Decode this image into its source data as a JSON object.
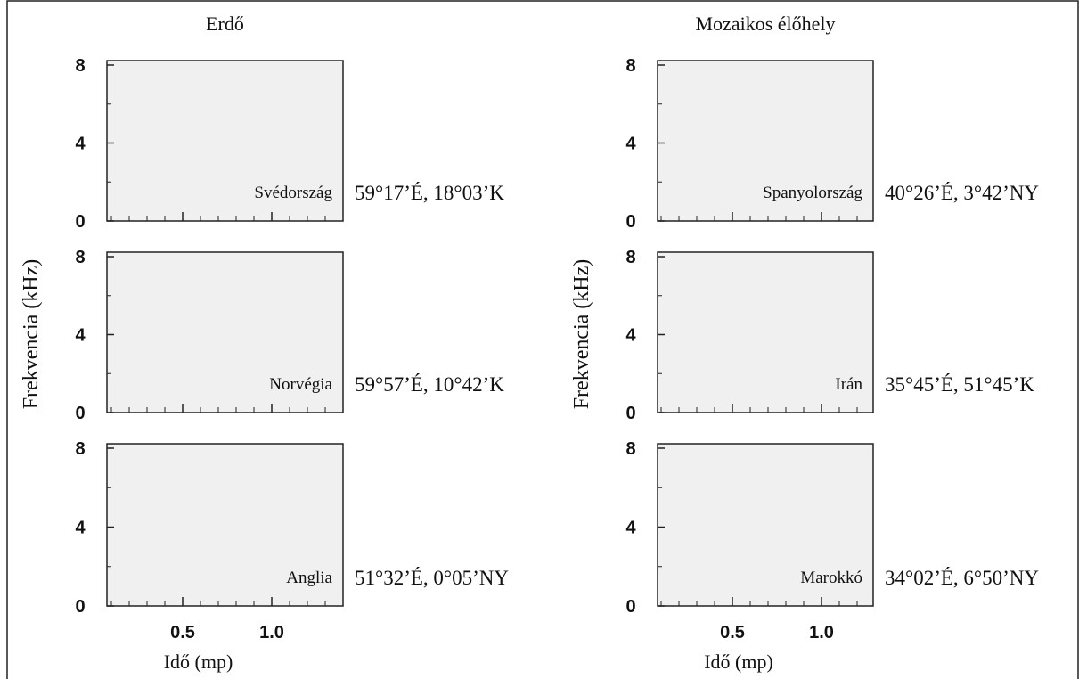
{
  "columns": [
    {
      "title": "Erdő",
      "panels": [
        {
          "country": "Svédország",
          "coords": "59°17’É, 18°03’K"
        },
        {
          "country": "Norvégia",
          "coords": "59°57’É, 10°42’K"
        },
        {
          "country": "Anglia",
          "coords": "51°32’É, 0°05’NY"
        }
      ]
    },
    {
      "title": "Mozaikos élőhely",
      "panels": [
        {
          "country": "Spanyolország",
          "coords": "40°26’É, 3°42’NY"
        },
        {
          "country": "Irán",
          "coords": "35°45’É, 51°45’K"
        },
        {
          "country": "Marokkó",
          "coords": "34°02’É, 6°50’NY"
        }
      ]
    }
  ],
  "y_axis_label": "Frekvencia (kHz)",
  "x_axis_label": "Idő (mp)",
  "yticks": [
    0,
    4,
    8
  ],
  "xticks": [
    0.5,
    {
      "value": 1,
      "label": "1.0"
    }
  ]
}
